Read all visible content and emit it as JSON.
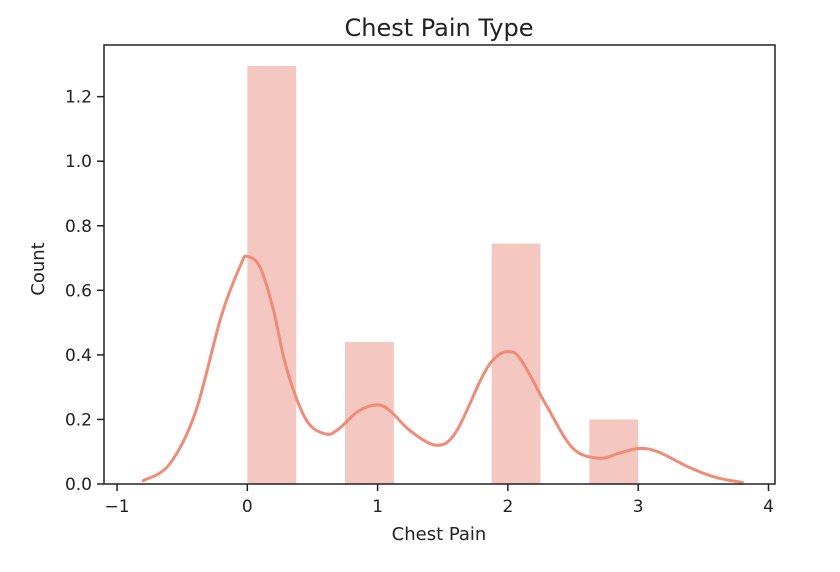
{
  "chart_data": {
    "type": "bar",
    "title": "Chest Pain Type",
    "xlabel": "Chest Pain",
    "ylabel": "Count",
    "xlim": [
      -1.1,
      4.05
    ],
    "ylim": [
      0,
      1.36
    ],
    "xticks": [
      -1,
      0,
      1,
      2,
      3,
      4
    ],
    "xtick_labels": [
      "−1",
      "0",
      "1",
      "2",
      "3",
      "4"
    ],
    "yticks": [
      0,
      0.2,
      0.4,
      0.6,
      0.8,
      1.0,
      1.2
    ],
    "ytick_labels": [
      "0.0",
      "0.2",
      "0.4",
      "0.6",
      "0.8",
      "1.0",
      "1.2"
    ],
    "bars": [
      {
        "x0": 0.0,
        "x1": 0.375,
        "height": 1.295
      },
      {
        "x0": 0.75,
        "x1": 1.125,
        "height": 0.44
      },
      {
        "x0": 1.875,
        "x1": 2.25,
        "height": 0.745
      },
      {
        "x0": 2.625,
        "x1": 3.0,
        "height": 0.2
      }
    ],
    "kde": {
      "x": [
        -0.8,
        -0.6,
        -0.4,
        -0.2,
        -0.05,
        0.0,
        0.1,
        0.2,
        0.3,
        0.45,
        0.6,
        0.7,
        0.85,
        1.0,
        1.1,
        1.25,
        1.45,
        1.6,
        1.8,
        1.9,
        2.0,
        2.1,
        2.3,
        2.5,
        2.7,
        2.85,
        3.0,
        3.15,
        3.4,
        3.6,
        3.8
      ],
      "y": [
        0.01,
        0.06,
        0.22,
        0.52,
        0.68,
        0.705,
        0.67,
        0.54,
        0.36,
        0.2,
        0.155,
        0.17,
        0.225,
        0.245,
        0.225,
        0.165,
        0.12,
        0.16,
        0.33,
        0.39,
        0.41,
        0.385,
        0.24,
        0.11,
        0.08,
        0.095,
        0.11,
        0.1,
        0.05,
        0.02,
        0.005
      ]
    },
    "bar_color": "#f4c7c0",
    "line_color": "#ef8b77",
    "grid": false,
    "legend": "none"
  }
}
